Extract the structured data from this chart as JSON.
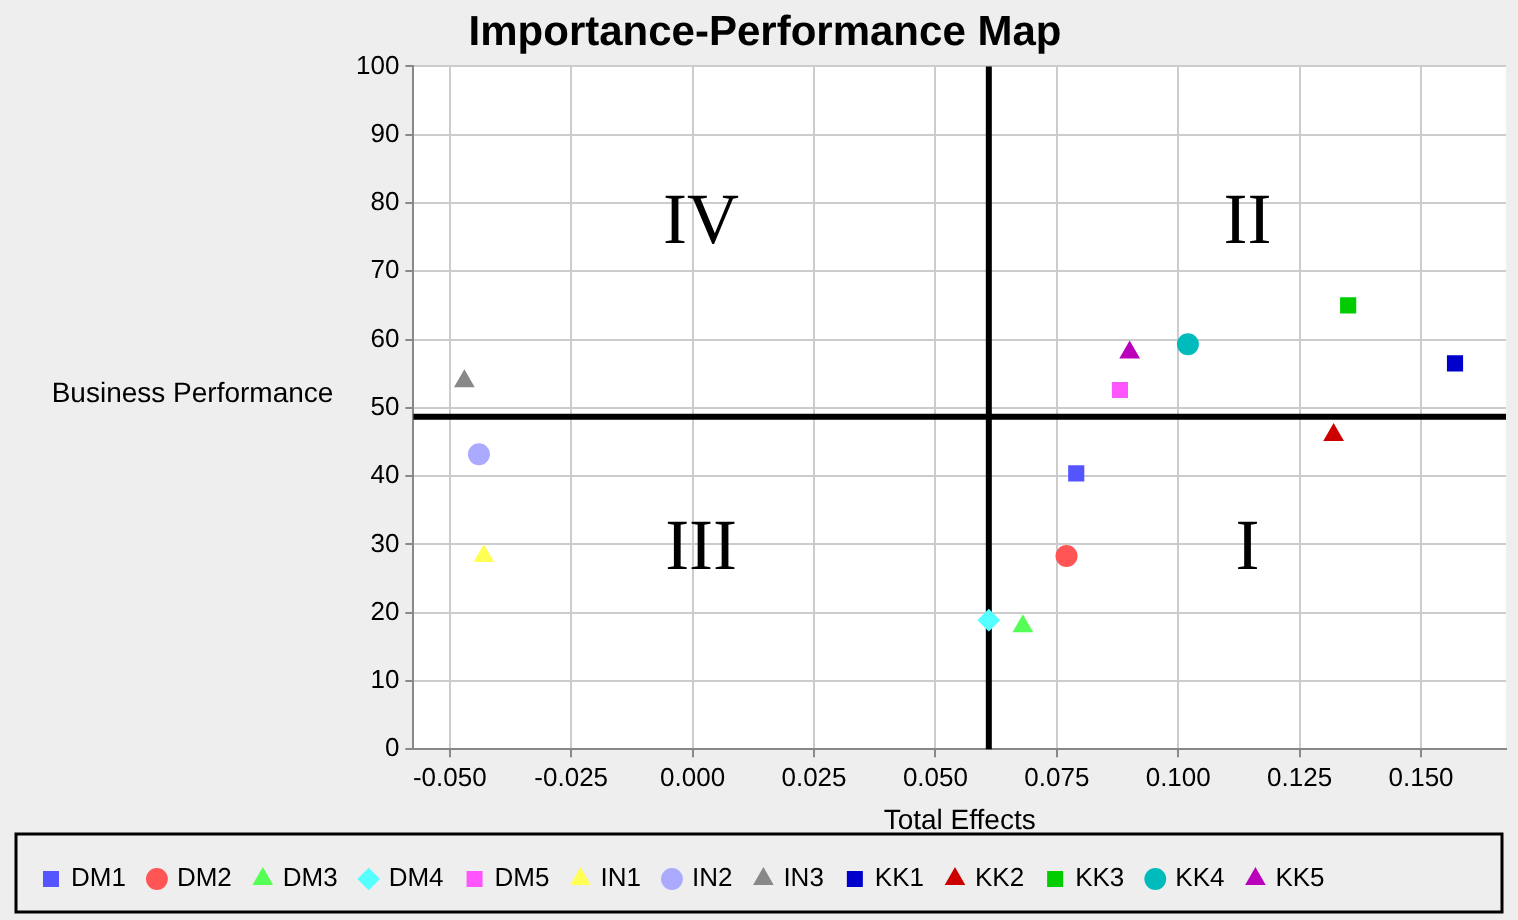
{
  "chart_data": {
    "type": "scatter",
    "title": "Importance-Performance Map",
    "xlabel": "Total Effects",
    "ylabel": "Business Performance",
    "xlim": [
      -0.0575,
      0.1675
    ],
    "ylim": [
      0,
      100
    ],
    "xticks": [
      {
        "value": -0.05,
        "label": "-0.050"
      },
      {
        "value": -0.025,
        "label": "-0.025"
      },
      {
        "value": 0,
        "label": "0.000"
      },
      {
        "value": 0.025,
        "label": "0.025"
      },
      {
        "value": 0.05,
        "label": "0.050"
      },
      {
        "value": 0.075,
        "label": "0.075"
      },
      {
        "value": 0.1,
        "label": "0.100"
      },
      {
        "value": 0.125,
        "label": "0.125"
      },
      {
        "value": 0.15,
        "label": "0.150"
      }
    ],
    "yticks": [
      0,
      10,
      20,
      30,
      40,
      50,
      60,
      70,
      80,
      90,
      100
    ],
    "grid": true,
    "legend": "bottom",
    "series": [
      {
        "name": "DM1",
        "color": "#5555ff",
        "marker": "square",
        "x": [
          0.079
        ],
        "values": [
          40.4
        ]
      },
      {
        "name": "DM2",
        "color": "#ff5555",
        "marker": "circle",
        "x": [
          0.077
        ],
        "values": [
          28.3
        ]
      },
      {
        "name": "DM3",
        "color": "#55ff55",
        "marker": "triangle",
        "x": [
          0.068
        ],
        "values": [
          18.0
        ]
      },
      {
        "name": "DM4",
        "color": "#55ffff",
        "marker": "diamond",
        "x": [
          0.061
        ],
        "values": [
          18.9
        ]
      },
      {
        "name": "DM5",
        "color": "#ff55ff",
        "marker": "square",
        "x": [
          0.088
        ],
        "values": [
          52.6
        ]
      },
      {
        "name": "IN1",
        "color": "#ffff55",
        "marker": "triangle",
        "x": [
          -0.043
        ],
        "values": [
          28.3
        ]
      },
      {
        "name": "IN2",
        "color": "#aaaaff",
        "marker": "circle",
        "x": [
          -0.044
        ],
        "values": [
          43.2
        ]
      },
      {
        "name": "IN3",
        "color": "#888888",
        "marker": "triangle",
        "x": [
          -0.047
        ],
        "values": [
          53.9
        ]
      },
      {
        "name": "KK1",
        "color": "#0000cc",
        "marker": "square",
        "x": [
          0.157
        ],
        "values": [
          56.5
        ]
      },
      {
        "name": "KK2",
        "color": "#cc0000",
        "marker": "triangle",
        "x": [
          0.132
        ],
        "values": [
          46.0
        ]
      },
      {
        "name": "KK3",
        "color": "#00cc00",
        "marker": "square",
        "x": [
          0.135
        ],
        "values": [
          65.0
        ]
      },
      {
        "name": "KK4",
        "color": "#00bbbb",
        "marker": "circle",
        "x": [
          0.102
        ],
        "values": [
          59.3
        ]
      },
      {
        "name": "KK5",
        "color": "#bb00bb",
        "marker": "triangle",
        "x": [
          0.09
        ],
        "values": [
          58.1
        ]
      }
    ],
    "ref_lines": [
      {
        "axis": "x",
        "value": 0.061,
        "color": "#000000"
      },
      {
        "axis": "y",
        "value": 48.7,
        "color": "#000000"
      }
    ],
    "annotations": [
      "IV",
      "II",
      "III",
      "I"
    ]
  }
}
